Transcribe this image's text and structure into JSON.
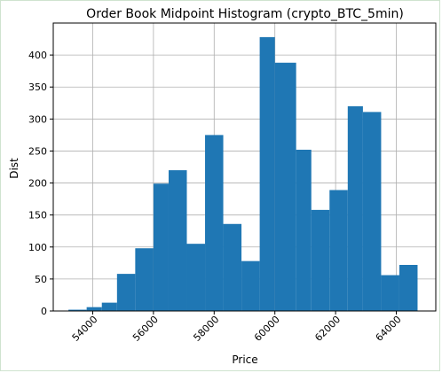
{
  "chart_data": {
    "type": "bar",
    "title": "Order Book Midpoint Histogram (crypto_BTC_5min)",
    "xlabel": "Price",
    "ylabel": "Dist",
    "grid": true,
    "bar_color": "#1f77b4",
    "xlim": [
      52700,
      65300
    ],
    "ylim": [
      0,
      450
    ],
    "x_ticks": [
      54000,
      56000,
      58000,
      60000,
      62000,
      64000
    ],
    "y_ticks": [
      0,
      50,
      100,
      150,
      200,
      250,
      300,
      350,
      400
    ],
    "bins": [
      {
        "x0": 53200,
        "x1": 53800,
        "count": 2
      },
      {
        "x0": 53800,
        "x1": 54300,
        "count": 6
      },
      {
        "x0": 54300,
        "x1": 54800,
        "count": 13
      },
      {
        "x0": 54800,
        "x1": 55400,
        "count": 58
      },
      {
        "x0": 55400,
        "x1": 56000,
        "count": 98
      },
      {
        "x0": 56000,
        "x1": 56500,
        "count": 199
      },
      {
        "x0": 56500,
        "x1": 57100,
        "count": 220
      },
      {
        "x0": 57100,
        "x1": 57700,
        "count": 105
      },
      {
        "x0": 57700,
        "x1": 58300,
        "count": 275
      },
      {
        "x0": 58300,
        "x1": 58900,
        "count": 136
      },
      {
        "x0": 58900,
        "x1": 59500,
        "count": 78
      },
      {
        "x0": 59500,
        "x1": 60000,
        "count": 428
      },
      {
        "x0": 60000,
        "x1": 60700,
        "count": 388
      },
      {
        "x0": 60700,
        "x1": 61200,
        "count": 252
      },
      {
        "x0": 61200,
        "x1": 61800,
        "count": 158
      },
      {
        "x0": 61800,
        "x1": 62400,
        "count": 189
      },
      {
        "x0": 62400,
        "x1": 62900,
        "count": 320
      },
      {
        "x0": 62900,
        "x1": 63500,
        "count": 311
      },
      {
        "x0": 63500,
        "x1": 64100,
        "count": 56
      },
      {
        "x0": 64100,
        "x1": 64700,
        "count": 72
      }
    ]
  }
}
